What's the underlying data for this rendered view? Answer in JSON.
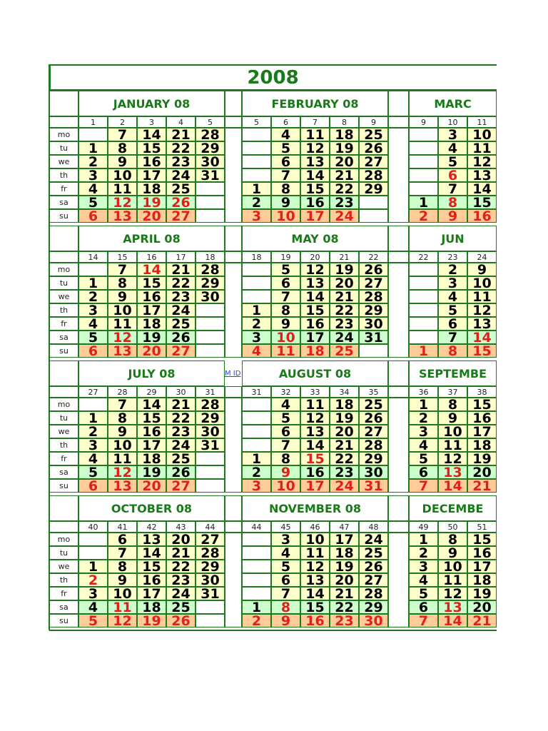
{
  "year": "2008",
  "weekday_labels": [
    "mo",
    "tu",
    "we",
    "th",
    "fr",
    "sa",
    "su"
  ],
  "link_text": "M ID",
  "colors": {
    "grid": "#1f7a1f",
    "title": "#1a7a1a",
    "holiday": "#e0201a",
    "weekday_bg": "#ffffcc",
    "saturday_bg": "#ccffcc",
    "sunday_bg": "#ffcc99"
  },
  "months": [
    {
      "label": "JANUARY 08",
      "weeks": [
        "1",
        "2",
        "3",
        "4",
        "5"
      ],
      "days": [
        [
          "",
          "7",
          "14",
          "21",
          "28"
        ],
        [
          "1",
          "8",
          "15",
          "22",
          "29"
        ],
        [
          "2",
          "9",
          "16",
          "23",
          "30"
        ],
        [
          "3",
          "10",
          "17",
          "24",
          "31"
        ],
        [
          "4",
          "11",
          "18",
          "25",
          ""
        ],
        [
          "5",
          "12",
          "19",
          "26",
          ""
        ],
        [
          "6",
          "13",
          "20",
          "27",
          ""
        ]
      ],
      "red": [
        [
          5,
          1
        ],
        [
          5,
          2
        ],
        [
          5,
          3
        ],
        [
          6,
          0
        ],
        [
          6,
          1
        ],
        [
          6,
          2
        ],
        [
          6,
          3
        ]
      ]
    },
    {
      "label": "FEBRUARY 08",
      "weeks": [
        "5",
        "6",
        "7",
        "8",
        "9"
      ],
      "days": [
        [
          "",
          "4",
          "11",
          "18",
          "25"
        ],
        [
          "",
          "5",
          "12",
          "19",
          "26"
        ],
        [
          "",
          "6",
          "13",
          "20",
          "27"
        ],
        [
          "",
          "7",
          "14",
          "21",
          "28"
        ],
        [
          "1",
          "8",
          "15",
          "22",
          "29"
        ],
        [
          "2",
          "9",
          "16",
          "23",
          ""
        ],
        [
          "3",
          "10",
          "17",
          "24",
          ""
        ]
      ],
      "red": [
        [
          6,
          0
        ],
        [
          6,
          1
        ],
        [
          6,
          2
        ],
        [
          6,
          3
        ]
      ]
    },
    {
      "label": "MARC",
      "weeks": [
        "9",
        "10",
        "11"
      ],
      "days": [
        [
          "",
          "3",
          "10"
        ],
        [
          "",
          "4",
          "11"
        ],
        [
          "",
          "5",
          "12"
        ],
        [
          "",
          "6",
          "13"
        ],
        [
          "",
          "7",
          "14"
        ],
        [
          "1",
          "8",
          "15"
        ],
        [
          "2",
          "9",
          "16"
        ]
      ],
      "red": [
        [
          3,
          1
        ],
        [
          5,
          1
        ],
        [
          6,
          0
        ],
        [
          6,
          1
        ],
        [
          6,
          2
        ]
      ]
    },
    {
      "label": "APRIL 08",
      "weeks": [
        "14",
        "15",
        "16",
        "17",
        "18"
      ],
      "days": [
        [
          "",
          "7",
          "14",
          "21",
          "28"
        ],
        [
          "1",
          "8",
          "15",
          "22",
          "29"
        ],
        [
          "2",
          "9",
          "16",
          "23",
          "30"
        ],
        [
          "3",
          "10",
          "17",
          "24",
          ""
        ],
        [
          "4",
          "11",
          "18",
          "25",
          ""
        ],
        [
          "5",
          "12",
          "19",
          "26",
          ""
        ],
        [
          "6",
          "13",
          "20",
          "27",
          ""
        ]
      ],
      "red": [
        [
          0,
          2
        ],
        [
          5,
          1
        ],
        [
          6,
          0
        ],
        [
          6,
          1
        ],
        [
          6,
          2
        ],
        [
          6,
          3
        ]
      ]
    },
    {
      "label": "MAY 08",
      "weeks": [
        "18",
        "19",
        "20",
        "21",
        "22"
      ],
      "days": [
        [
          "",
          "5",
          "12",
          "19",
          "26"
        ],
        [
          "",
          "6",
          "13",
          "20",
          "27"
        ],
        [
          "",
          "7",
          "14",
          "21",
          "28"
        ],
        [
          "1",
          "8",
          "15",
          "22",
          "29"
        ],
        [
          "2",
          "9",
          "16",
          "23",
          "30"
        ],
        [
          "3",
          "10",
          "17",
          "24",
          "31"
        ],
        [
          "4",
          "11",
          "18",
          "25",
          ""
        ]
      ],
      "red": [
        [
          5,
          1
        ],
        [
          6,
          0
        ],
        [
          6,
          1
        ],
        [
          6,
          2
        ],
        [
          6,
          3
        ]
      ]
    },
    {
      "label": "JUN",
      "weeks": [
        "22",
        "23",
        "24"
      ],
      "days": [
        [
          "",
          "2",
          "9"
        ],
        [
          "",
          "3",
          "10"
        ],
        [
          "",
          "4",
          "11"
        ],
        [
          "",
          "5",
          "12"
        ],
        [
          "",
          "6",
          "13"
        ],
        [
          "",
          "7",
          "14"
        ],
        [
          "1",
          "8",
          "15"
        ]
      ],
      "red": [
        [
          5,
          2
        ],
        [
          6,
          0
        ],
        [
          6,
          1
        ],
        [
          6,
          2
        ]
      ]
    },
    {
      "label": "JULY 08",
      "weeks": [
        "27",
        "28",
        "29",
        "30",
        "31"
      ],
      "days": [
        [
          "",
          "7",
          "14",
          "21",
          "28"
        ],
        [
          "1",
          "8",
          "15",
          "22",
          "29"
        ],
        [
          "2",
          "9",
          "16",
          "23",
          "30"
        ],
        [
          "3",
          "10",
          "17",
          "24",
          "31"
        ],
        [
          "4",
          "11",
          "18",
          "25",
          ""
        ],
        [
          "5",
          "12",
          "19",
          "26",
          ""
        ],
        [
          "6",
          "13",
          "20",
          "27",
          ""
        ]
      ],
      "red": [
        [
          5,
          1
        ],
        [
          6,
          0
        ],
        [
          6,
          1
        ],
        [
          6,
          2
        ],
        [
          6,
          3
        ]
      ]
    },
    {
      "label": "AUGUST 08",
      "weeks": [
        "31",
        "32",
        "33",
        "34",
        "35"
      ],
      "days": [
        [
          "",
          "4",
          "11",
          "18",
          "25"
        ],
        [
          "",
          "5",
          "12",
          "19",
          "26"
        ],
        [
          "",
          "6",
          "13",
          "20",
          "27"
        ],
        [
          "",
          "7",
          "14",
          "21",
          "28"
        ],
        [
          "1",
          "8",
          "15",
          "22",
          "29"
        ],
        [
          "2",
          "9",
          "16",
          "23",
          "30"
        ],
        [
          "3",
          "10",
          "17",
          "24",
          "31"
        ]
      ],
      "red": [
        [
          4,
          2
        ],
        [
          5,
          1
        ],
        [
          6,
          0
        ],
        [
          6,
          1
        ],
        [
          6,
          2
        ],
        [
          6,
          3
        ],
        [
          6,
          4
        ]
      ]
    },
    {
      "label": "SEPTEMBE",
      "weeks": [
        "36",
        "37",
        "38"
      ],
      "days": [
        [
          "1",
          "8",
          "15"
        ],
        [
          "2",
          "9",
          "16"
        ],
        [
          "3",
          "10",
          "17"
        ],
        [
          "4",
          "11",
          "18"
        ],
        [
          "5",
          "12",
          "19"
        ],
        [
          "6",
          "13",
          "20"
        ],
        [
          "7",
          "14",
          "21"
        ]
      ],
      "red": [
        [
          5,
          1
        ],
        [
          6,
          0
        ],
        [
          6,
          1
        ],
        [
          6,
          2
        ]
      ]
    },
    {
      "label": "OCTOBER 08",
      "weeks": [
        "40",
        "41",
        "42",
        "43",
        "44"
      ],
      "days": [
        [
          "",
          "6",
          "13",
          "20",
          "27"
        ],
        [
          "",
          "7",
          "14",
          "21",
          "28"
        ],
        [
          "1",
          "8",
          "15",
          "22",
          "29"
        ],
        [
          "2",
          "9",
          "16",
          "23",
          "30"
        ],
        [
          "3",
          "10",
          "17",
          "24",
          "31"
        ],
        [
          "4",
          "11",
          "18",
          "25",
          ""
        ],
        [
          "5",
          "12",
          "19",
          "26",
          ""
        ]
      ],
      "red": [
        [
          3,
          0
        ],
        [
          5,
          1
        ],
        [
          6,
          0
        ],
        [
          6,
          1
        ],
        [
          6,
          2
        ],
        [
          6,
          3
        ]
      ]
    },
    {
      "label": "NOVEMBER 08",
      "weeks": [
        "44",
        "45",
        "46",
        "47",
        "48"
      ],
      "days": [
        [
          "",
          "3",
          "10",
          "17",
          "24"
        ],
        [
          "",
          "4",
          "11",
          "18",
          "25"
        ],
        [
          "",
          "5",
          "12",
          "19",
          "26"
        ],
        [
          "",
          "6",
          "13",
          "20",
          "27"
        ],
        [
          "",
          "7",
          "14",
          "21",
          "28"
        ],
        [
          "1",
          "8",
          "15",
          "22",
          "29"
        ],
        [
          "2",
          "9",
          "16",
          "23",
          "30"
        ]
      ],
      "red": [
        [
          5,
          1
        ],
        [
          6,
          0
        ],
        [
          6,
          1
        ],
        [
          6,
          2
        ],
        [
          6,
          3
        ],
        [
          6,
          4
        ]
      ]
    },
    {
      "label": "DECEMBE",
      "weeks": [
        "49",
        "50",
        "51"
      ],
      "days": [
        [
          "1",
          "8",
          "15"
        ],
        [
          "2",
          "9",
          "16"
        ],
        [
          "3",
          "10",
          "17"
        ],
        [
          "4",
          "11",
          "18"
        ],
        [
          "5",
          "12",
          "19"
        ],
        [
          "6",
          "13",
          "20"
        ],
        [
          "7",
          "14",
          "21"
        ]
      ],
      "red": [
        [
          5,
          1
        ],
        [
          6,
          0
        ],
        [
          6,
          1
        ],
        [
          6,
          2
        ]
      ]
    }
  ]
}
